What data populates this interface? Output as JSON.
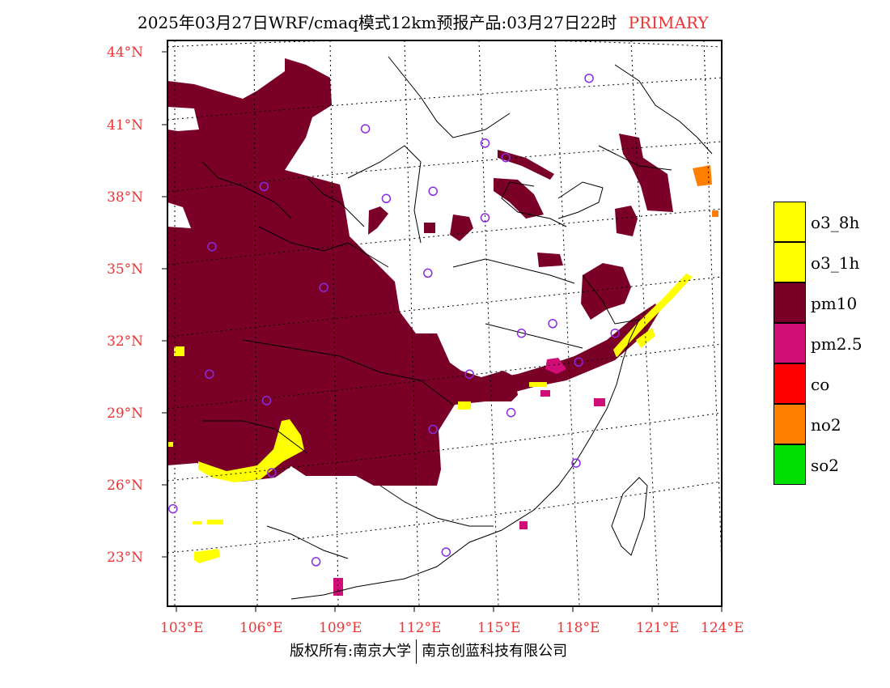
{
  "title": {
    "text": "2025年03月27日WRF/cmaq模式12km预报产品:03月27日22时",
    "badge": "PRIMARY"
  },
  "axes": {
    "y_ticks": [
      "44°N",
      "41°N",
      "38°N",
      "35°N",
      "32°N",
      "29°N",
      "26°N",
      "23°N"
    ],
    "x_ticks": [
      "103°E",
      "106°E",
      "109°E",
      "112°E",
      "115°E",
      "118°E",
      "121°E",
      "124°E"
    ]
  },
  "legend": {
    "items": [
      {
        "label": "o3_8h",
        "color": "#ffff00"
      },
      {
        "label": "o3_1h",
        "color": "#ffff00"
      },
      {
        "label": "pm10",
        "color": "#7a0028"
      },
      {
        "label": "pm2.5",
        "color": "#d10d78"
      },
      {
        "label": "co",
        "color": "#ff0000"
      },
      {
        "label": "no2",
        "color": "#ff7f00"
      },
      {
        "label": "so2",
        "color": "#00e000"
      }
    ]
  },
  "footer": {
    "left": "版权所有:南京大学",
    "right": "南京创蓝科技有限公司"
  },
  "colors": {
    "pm10": "#7a0028",
    "o3": "#ffff00",
    "pm25": "#d10d78",
    "no2": "#ff7f00",
    "axis_label": "#e33333",
    "station": "#8a2be2"
  },
  "map": {
    "extent": {
      "lon": [
        103,
        124
      ],
      "lat": [
        21,
        44.5
      ]
    },
    "stations": [
      {
        "lon": 118.9,
        "lat": 42.9
      },
      {
        "lon": 110.3,
        "lat": 40.8
      },
      {
        "lon": 114.9,
        "lat": 40.2
      },
      {
        "lon": 115.7,
        "lat": 39.6
      },
      {
        "lon": 106.4,
        "lat": 38.4
      },
      {
        "lon": 111.1,
        "lat": 37.9
      },
      {
        "lon": 112.9,
        "lat": 38.2
      },
      {
        "lon": 114.9,
        "lat": 37.1
      },
      {
        "lon": 104.4,
        "lat": 35.9
      },
      {
        "lon": 112.7,
        "lat": 34.8
      },
      {
        "lon": 108.7,
        "lat": 34.2
      },
      {
        "lon": 116.3,
        "lat": 32.3
      },
      {
        "lon": 117.5,
        "lat": 32.7
      },
      {
        "lon": 119.9,
        "lat": 32.3
      },
      {
        "lon": 104.3,
        "lat": 30.6
      },
      {
        "lon": 114.3,
        "lat": 30.6
      },
      {
        "lon": 118.5,
        "lat": 31.1
      },
      {
        "lon": 106.5,
        "lat": 29.5
      },
      {
        "lon": 115.9,
        "lat": 29.0
      },
      {
        "lon": 112.9,
        "lat": 28.3
      },
      {
        "lon": 106.7,
        "lat": 26.5
      },
      {
        "lon": 118.4,
        "lat": 26.9
      },
      {
        "lon": 102.9,
        "lat": 25.0
      },
      {
        "lon": 108.4,
        "lat": 22.8
      },
      {
        "lon": 113.4,
        "lat": 23.2
      }
    ]
  }
}
